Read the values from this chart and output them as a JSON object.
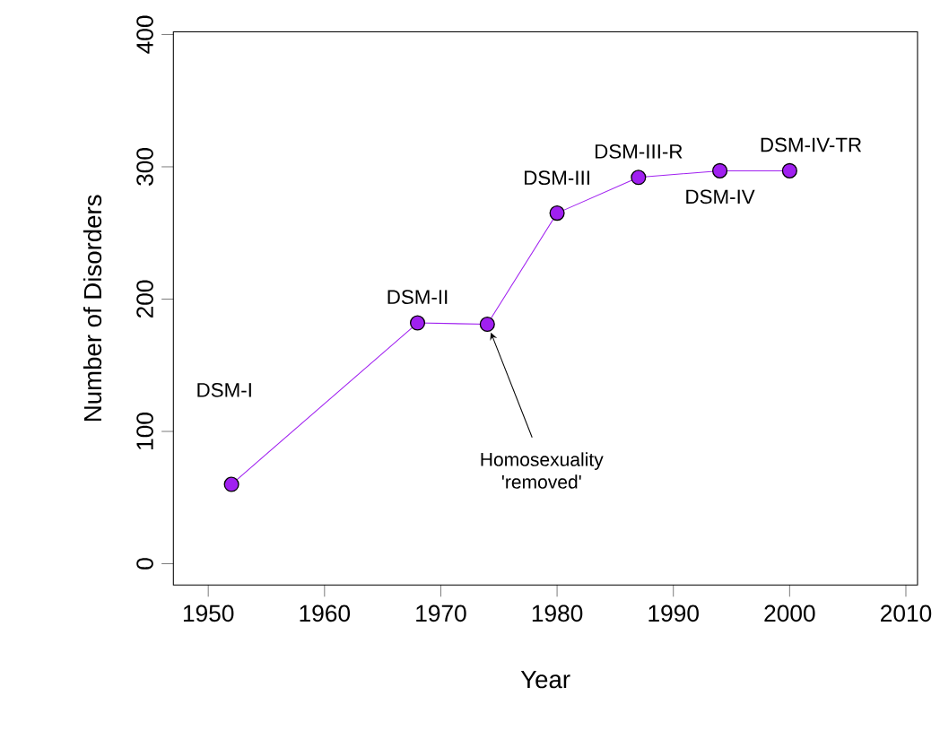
{
  "chart_data": {
    "type": "line",
    "xlabel": "Year",
    "ylabel": "Number of Disorders",
    "x": [
      1952,
      1968,
      1974,
      1980,
      1987,
      1994,
      2000
    ],
    "series": [
      {
        "color": "#a020f0",
        "values": [
          60,
          182,
          181,
          265,
          292,
          297,
          297
        ]
      }
    ],
    "marker": "circle",
    "line_style": "solid",
    "grid": false,
    "xlim": [
      1947,
      2011
    ],
    "ylim": [
      -16,
      402
    ],
    "xticks": [
      1950,
      1960,
      1970,
      1980,
      1990,
      2000,
      2010
    ],
    "yticks": [
      0,
      100,
      200,
      300,
      400
    ],
    "annotations": [
      "DSM-I",
      {
        "text": "DSM-II",
        "x": 1968,
        "y": 182
      },
      {
        "text": "Homosexuality 'removed'",
        "x": 1974,
        "y": 181
      },
      {
        "text": "DSM-III",
        "x": 1980,
        "y": 265
      },
      {
        "text": "DSM-III-R",
        "x": 1987,
        "y": 292
      },
      {
        "text": "DSM-IV",
        "x": 1994,
        "y": 297
      },
      {
        "text": "DSM-IV-TR",
        "x": 2000,
        "y": 297
      }
    ]
  }
}
